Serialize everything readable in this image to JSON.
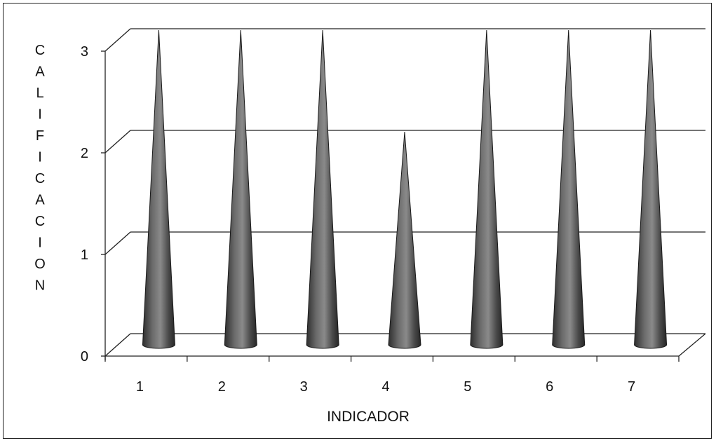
{
  "chart_data": {
    "type": "bar",
    "style": "3d-cone",
    "categories": [
      "1",
      "2",
      "3",
      "4",
      "5",
      "6",
      "7"
    ],
    "values": [
      3,
      3,
      3,
      2,
      3,
      3,
      3
    ],
    "title": "",
    "xlabel": "INDICADOR",
    "ylabel": "CALIFICACION",
    "ylim": [
      0,
      3
    ],
    "yticks": [
      "0",
      "1",
      "2",
      "3"
    ],
    "grid": true,
    "legend": "none",
    "colors": {
      "cone": "#5a5a5a",
      "cone_dark": "#2a2a2a",
      "cone_light": "#9a9a9a",
      "grid": "#222222"
    }
  }
}
